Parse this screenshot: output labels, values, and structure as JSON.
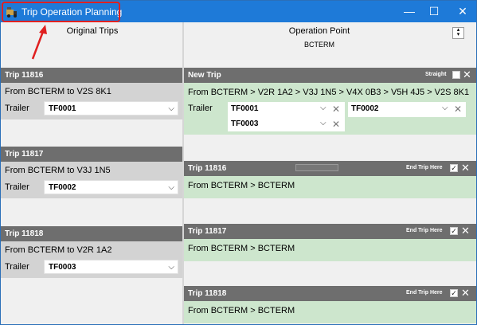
{
  "window": {
    "title": "Trip Operation Planning",
    "minimize_glyph": "—",
    "maximize_glyph": "☐",
    "close_glyph": "✕"
  },
  "left": {
    "header": "Original Trips",
    "trailer_label": "Trailer",
    "trips": [
      {
        "title": "Trip 11816",
        "route": "From BCTERM to V2S 8K1",
        "trailer": "TF0001"
      },
      {
        "title": "Trip 11817",
        "route": "From BCTERM to V3J 1N5",
        "trailer": "TF0002"
      },
      {
        "title": "Trip 11818",
        "route": "From BCTERM to V2R 1A2",
        "trailer": "TF0003"
      }
    ]
  },
  "right": {
    "header": "Operation Point",
    "operation_point": "BCTERM",
    "new_trip": {
      "title": "New Trip",
      "straight_label": "Straight",
      "route": "From BCTERM > V2R 1A2 > V3J 1N5 > V4X 0B3 > V5H 4J5 > V2S 8K1",
      "trailer_label": "Trailer",
      "trailers": [
        "TF0001",
        "TF0003",
        "TF0002"
      ]
    },
    "end_trip_label": "End Trip Here",
    "trips": [
      {
        "title": "Trip 11816",
        "route": "From BCTERM > BCTERM"
      },
      {
        "title": "Trip 11817",
        "route": "From BCTERM > BCTERM"
      },
      {
        "title": "Trip 11818",
        "route": "From BCTERM > BCTERM"
      }
    ]
  },
  "icons": {
    "app": "truck-icon",
    "dropdown": "chevron-down-icon",
    "remove": "close-icon",
    "checked": "checkbox-checked-icon",
    "annotation": "red-arrow-icon"
  },
  "colors": {
    "titlebar": "#1e7ad8",
    "card_header": "#6e6e6e",
    "left_body": "#d3d3d3",
    "right_body": "#cde6cd",
    "annotation": "#e02020"
  }
}
